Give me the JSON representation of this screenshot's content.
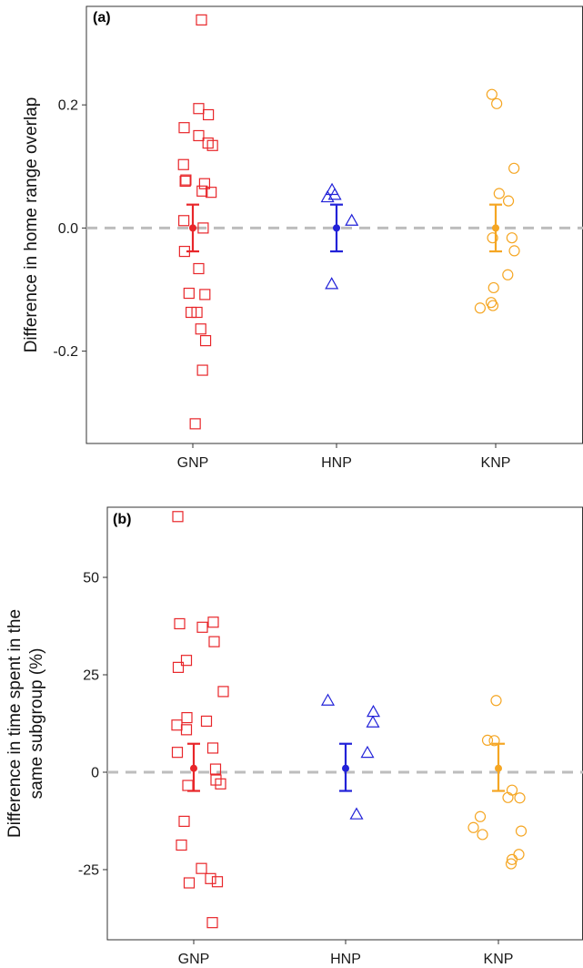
{
  "chart_data": [
    {
      "type": "scatter",
      "panel_label": "(a)",
      "ylabel": "Difference in home range overlap",
      "categories": [
        "GNP",
        "HNP",
        "KNP"
      ],
      "yticks": [
        -0.2,
        0.0,
        0.2
      ],
      "ytick_labels": [
        "-0.2",
        "0.0",
        "0.2"
      ],
      "ylim": [
        -0.35,
        0.36
      ],
      "reference_line": 0,
      "grid": false,
      "series": [
        {
          "category": "GNP",
          "marker": "square",
          "color": "#e8262a",
          "points": [
            {
              "x": -0.25,
              "y": 0.163
            },
            {
              "x": -0.27,
              "y": 0.103
            },
            {
              "x": -0.2,
              "y": 0.078
            },
            {
              "x": -0.22,
              "y": 0.076
            },
            {
              "x": -0.26,
              "y": 0.012
            },
            {
              "x": -0.24,
              "y": -0.038
            },
            {
              "x": -0.11,
              "y": -0.106
            },
            {
              "x": -0.05,
              "y": -0.137
            },
            {
              "x": 0.25,
              "y": 0.338
            },
            {
              "x": 0.17,
              "y": 0.194
            },
            {
              "x": 0.45,
              "y": 0.184
            },
            {
              "x": 0.17,
              "y": 0.15
            },
            {
              "x": 0.44,
              "y": 0.138
            },
            {
              "x": 0.57,
              "y": 0.134
            },
            {
              "x": 0.34,
              "y": 0.072
            },
            {
              "x": 0.27,
              "y": 0.06
            },
            {
              "x": 0.53,
              "y": 0.058
            },
            {
              "x": 0.3,
              "y": 0.0
            },
            {
              "x": 0.17,
              "y": -0.066
            },
            {
              "x": 0.35,
              "y": -0.108
            },
            {
              "x": 0.12,
              "y": -0.137
            },
            {
              "x": 0.23,
              "y": -0.164
            },
            {
              "x": 0.37,
              "y": -0.183
            },
            {
              "x": 0.28,
              "y": -0.231
            },
            {
              "x": 0.07,
              "y": -0.318
            }
          ],
          "mean": 0.0,
          "ci": [
            -0.038,
            0.038
          ]
        },
        {
          "category": "HNP",
          "marker": "triangle",
          "color": "#2222d8",
          "points": [
            {
              "x": -0.26,
              "y": 0.05
            },
            {
              "x": -0.13,
              "y": 0.062
            },
            {
              "x": -0.05,
              "y": 0.054
            },
            {
              "x": 0.44,
              "y": 0.012
            },
            {
              "x": -0.14,
              "y": -0.091
            }
          ],
          "mean": 0.0,
          "ci": [
            -0.038,
            0.038
          ]
        },
        {
          "category": "KNP",
          "marker": "circle",
          "color": "#f5a623",
          "points": [
            {
              "x": -0.11,
              "y": 0.217
            },
            {
              "x": 0.03,
              "y": 0.202
            },
            {
              "x": 0.53,
              "y": 0.097
            },
            {
              "x": 0.1,
              "y": 0.056
            },
            {
              "x": 0.37,
              "y": 0.044
            },
            {
              "x": -0.09,
              "y": -0.016
            },
            {
              "x": 0.54,
              "y": -0.037
            },
            {
              "x": 0.47,
              "y": -0.016
            },
            {
              "x": 0.35,
              "y": -0.076
            },
            {
              "x": -0.06,
              "y": -0.097
            },
            {
              "x": -0.08,
              "y": -0.126
            },
            {
              "x": -0.45,
              "y": -0.13
            },
            {
              "x": -0.13,
              "y": -0.121
            }
          ],
          "mean": 0.0,
          "ci": [
            -0.038,
            0.038
          ]
        }
      ]
    },
    {
      "type": "scatter",
      "panel_label": "(b)",
      "ylabel": "Difference in time spent in the same subgroup (%)",
      "ylabel_lines": [
        "Difference in time spent in the",
        "same subgroup (%)"
      ],
      "categories": [
        "GNP",
        "HNP",
        "KNP"
      ],
      "yticks": [
        -25,
        0,
        25,
        50
      ],
      "ytick_labels": [
        "-25",
        "0",
        "25",
        "50"
      ],
      "ylim": [
        -43,
        68
      ],
      "reference_line": 0,
      "grid": false,
      "series": [
        {
          "category": "GNP",
          "marker": "square",
          "color": "#e8262a",
          "points": [
            {
              "x": -0.35,
              "y": 65.6
            },
            {
              "x": -0.31,
              "y": 38.1
            },
            {
              "x": -0.16,
              "y": 28.7
            },
            {
              "x": -0.34,
              "y": 26.9
            },
            {
              "x": -0.37,
              "y": 12.1
            },
            {
              "x": -0.15,
              "y": 14.0
            },
            {
              "x": -0.16,
              "y": 10.9
            },
            {
              "x": -0.36,
              "y": 5.1
            },
            {
              "x": -0.13,
              "y": -3.4
            },
            {
              "x": -0.21,
              "y": -12.6
            },
            {
              "x": -0.27,
              "y": -18.7
            },
            {
              "x": -0.1,
              "y": -28.4
            },
            {
              "x": 0.19,
              "y": 37.2
            },
            {
              "x": 0.43,
              "y": 38.5
            },
            {
              "x": 0.45,
              "y": 33.5
            },
            {
              "x": 0.65,
              "y": 20.7
            },
            {
              "x": 0.28,
              "y": 13.1
            },
            {
              "x": 0.42,
              "y": 6.2
            },
            {
              "x": 0.48,
              "y": 0.8
            },
            {
              "x": 0.49,
              "y": -2.0
            },
            {
              "x": 0.59,
              "y": -3.0
            },
            {
              "x": 0.17,
              "y": -24.7
            },
            {
              "x": 0.37,
              "y": -27.3
            },
            {
              "x": 0.52,
              "y": -28.1
            },
            {
              "x": 0.41,
              "y": -38.6
            }
          ],
          "mean": 1.0,
          "ci": [
            -4.8,
            7.3
          ]
        },
        {
          "category": "HNP",
          "marker": "triangle",
          "color": "#2222d8",
          "points": [
            {
              "x": -0.39,
              "y": 18.4
            },
            {
              "x": 0.61,
              "y": 15.5
            },
            {
              "x": 0.6,
              "y": 12.8
            },
            {
              "x": 0.48,
              "y": 5.0
            },
            {
              "x": 0.24,
              "y": -10.8
            }
          ],
          "mean": 1.0,
          "ci": [
            -4.8,
            7.3
          ]
        },
        {
          "category": "KNP",
          "marker": "circle",
          "color": "#f5a623",
          "points": [
            {
              "x": -0.05,
              "y": 18.4
            },
            {
              "x": -0.24,
              "y": 8.2
            },
            {
              "x": -0.09,
              "y": 8.1
            },
            {
              "x": 0.3,
              "y": -4.6
            },
            {
              "x": 0.21,
              "y": -6.5
            },
            {
              "x": 0.47,
              "y": -6.6
            },
            {
              "x": -0.55,
              "y": -14.2
            },
            {
              "x": -0.4,
              "y": -11.4
            },
            {
              "x": -0.35,
              "y": -16.0
            },
            {
              "x": 0.5,
              "y": -15.1
            },
            {
              "x": 0.45,
              "y": -21.1
            },
            {
              "x": 0.3,
              "y": -22.4
            },
            {
              "x": 0.28,
              "y": -23.5
            }
          ],
          "mean": 1.0,
          "ci": [
            -4.8,
            7.3
          ]
        }
      ]
    }
  ]
}
